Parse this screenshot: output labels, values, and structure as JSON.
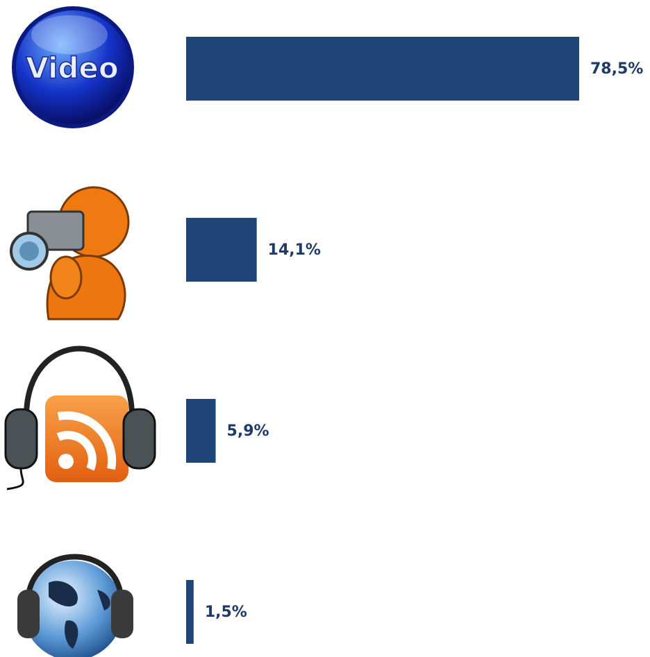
{
  "chart_data": {
    "type": "hbar",
    "categories": [
      "Video",
      null,
      null,
      null
    ],
    "values": [
      78.5,
      14.1,
      5.9,
      1.5
    ],
    "value_labels": [
      "78,5%",
      "14,1%",
      "5,9%",
      "1,5%"
    ],
    "color": "#1f4677"
  }
}
